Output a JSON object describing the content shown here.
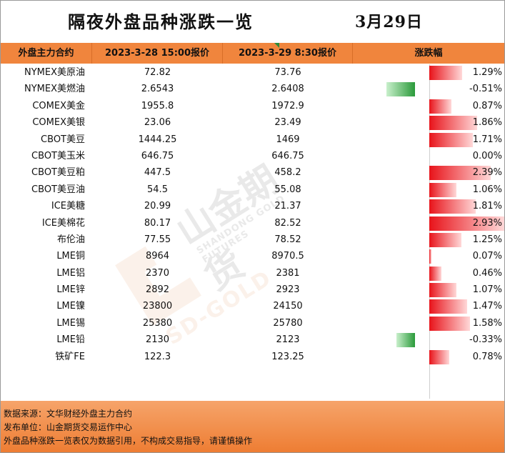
{
  "title": "隔夜外盘品种涨跌一览",
  "date": "3月29日",
  "header": {
    "col_name": "外盘主力合约",
    "col_prev": "2023-3-28 15:00报价",
    "col_cur": "2023-3-29 8:30报价",
    "col_change": "涨跌幅"
  },
  "watermark": {
    "brand": "山金期货",
    "sub": "SHANDONG GOLD FUTURES",
    "logo_text": "SD-GOLD"
  },
  "colors": {
    "header_bg": "#f0853d",
    "up": "#e8131a",
    "down": "#2a9a3a",
    "footer_bg": "#ee7d33"
  },
  "rows": [
    {
      "name": "NYMEX美原油",
      "prev": "72.82",
      "cur": "73.76",
      "pct_text": "1.29%",
      "pct": 1.29
    },
    {
      "name": "NYMEX美燃油",
      "prev": "2.6543",
      "cur": "2.6408",
      "pct_text": "-0.51%",
      "pct": -0.51
    },
    {
      "name": "COMEX美金",
      "prev": "1955.8",
      "cur": "1972.9",
      "pct_text": "0.87%",
      "pct": 0.87
    },
    {
      "name": "COMEX美银",
      "prev": "23.06",
      "cur": "23.49",
      "pct_text": "1.86%",
      "pct": 1.86
    },
    {
      "name": "CBOT美豆",
      "prev": "1444.25",
      "cur": "1469",
      "pct_text": "1.71%",
      "pct": 1.71
    },
    {
      "name": "CBOT美玉米",
      "prev": "646.75",
      "cur": "646.75",
      "pct_text": "0.00%",
      "pct": 0.0
    },
    {
      "name": "CBOT美豆粕",
      "prev": "447.5",
      "cur": "458.2",
      "pct_text": "2.39%",
      "pct": 2.39
    },
    {
      "name": "CBOT美豆油",
      "prev": "54.5",
      "cur": "55.08",
      "pct_text": "1.06%",
      "pct": 1.06
    },
    {
      "name": "ICE美糖",
      "prev": "20.99",
      "cur": "21.37",
      "pct_text": "1.81%",
      "pct": 1.81
    },
    {
      "name": "ICE美棉花",
      "prev": "80.17",
      "cur": "82.52",
      "pct_text": "2.93%",
      "pct": 2.93
    },
    {
      "name": "布伦油",
      "prev": "77.55",
      "cur": "78.52",
      "pct_text": "1.25%",
      "pct": 1.25
    },
    {
      "name": "LME铜",
      "prev": "8964",
      "cur": "8970.5",
      "pct_text": "0.07%",
      "pct": 0.07
    },
    {
      "name": "LME铝",
      "prev": "2370",
      "cur": "2381",
      "pct_text": "0.46%",
      "pct": 0.46
    },
    {
      "name": "LME锌",
      "prev": "2892",
      "cur": "2923",
      "pct_text": "1.07%",
      "pct": 1.07
    },
    {
      "name": "LME镍",
      "prev": "23800",
      "cur": "24150",
      "pct_text": "1.47%",
      "pct": 1.47
    },
    {
      "name": "LME锡",
      "prev": "25380",
      "cur": "25780",
      "pct_text": "1.58%",
      "pct": 1.58
    },
    {
      "name": "LME铅",
      "prev": "2130",
      "cur": "2123",
      "pct_text": "-0.33%",
      "pct": -0.33
    },
    {
      "name": "铁矿FE",
      "prev": "122.3",
      "cur": "123.25",
      "pct_text": "0.78%",
      "pct": 0.78
    }
  ],
  "footer": {
    "source": "数据来源：文华财经外盘主力合约",
    "publisher": "发布单位：山金期货交易运作中心",
    "disclaimer": "外盘品种涨跌一览表仅为数据引用，不构成交易指导，请谨慎操作"
  }
}
